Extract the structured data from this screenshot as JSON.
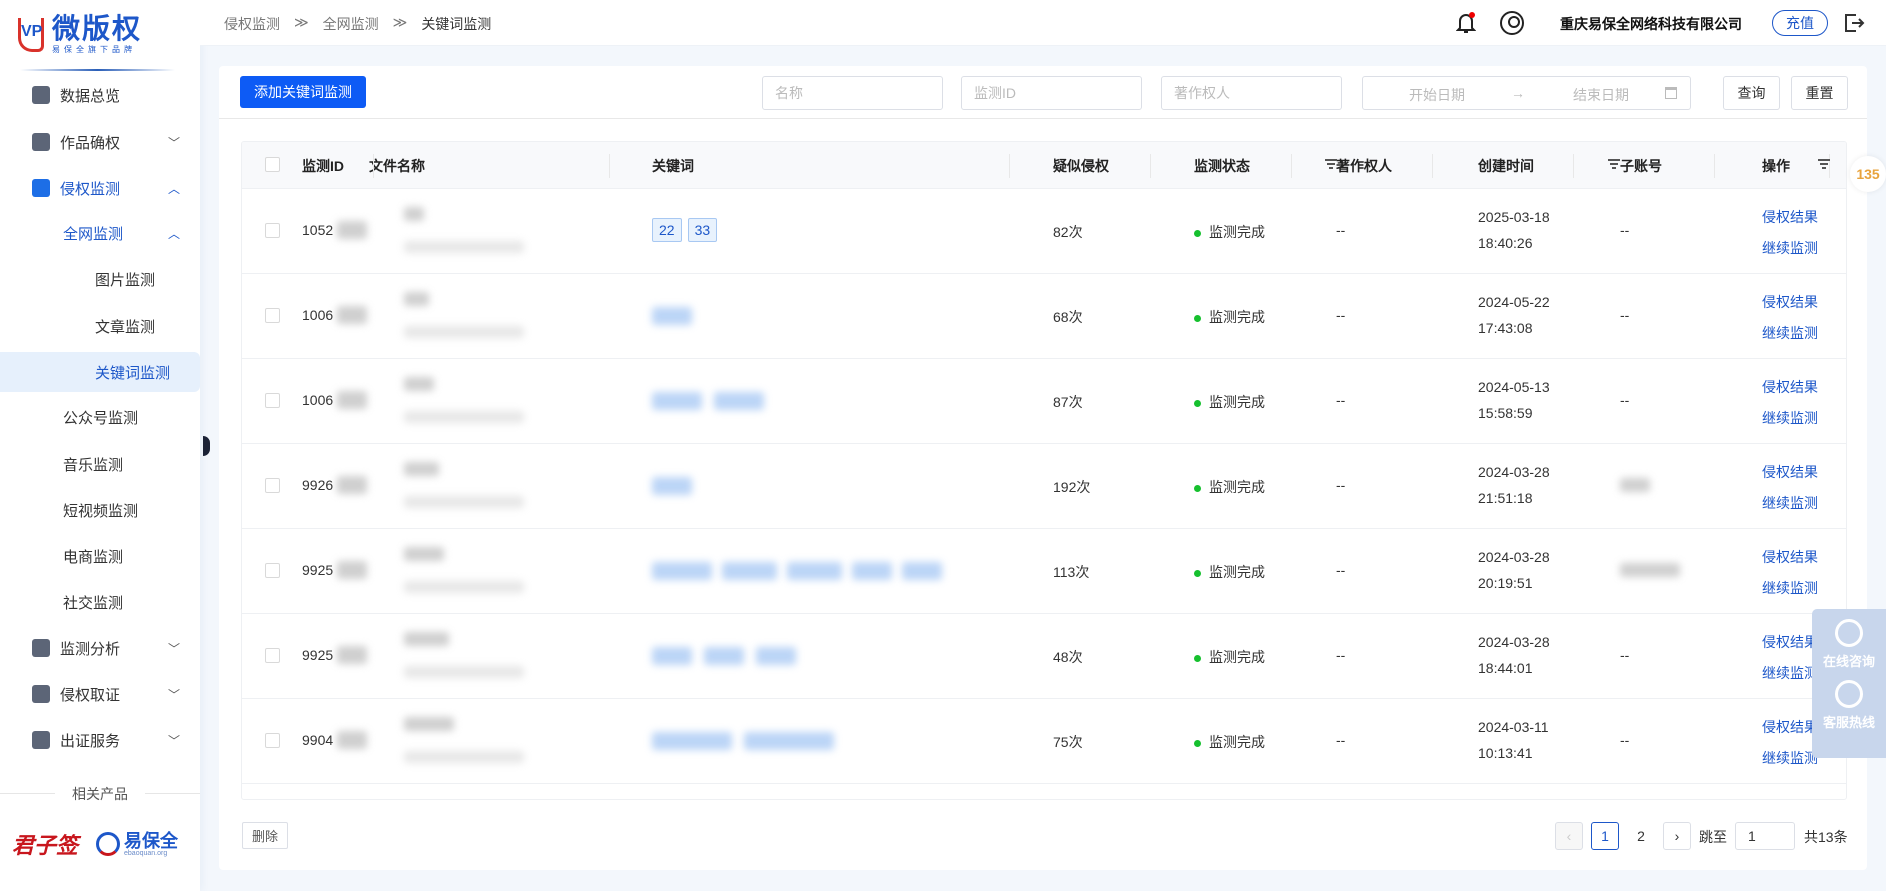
{
  "brand": {
    "title": "微版权",
    "subtitle": "易保全旗下品牌",
    "mark": "VP"
  },
  "sidebar": {
    "items": [
      {
        "label": "数据总览",
        "icon": "home-icon"
      },
      {
        "label": "作品确权",
        "icon": "shield-check-icon",
        "chevron": "down"
      },
      {
        "label": "侵权监测",
        "icon": "monitor-icon",
        "chevron": "up"
      },
      {
        "label": "全网监测",
        "chevron": "up"
      },
      {
        "label": "图片监测"
      },
      {
        "label": "文章监测"
      },
      {
        "label": "关键词监测",
        "active": true
      },
      {
        "label": "公众号监测"
      },
      {
        "label": "音乐监测"
      },
      {
        "label": "短视频监测"
      },
      {
        "label": "电商监测"
      },
      {
        "label": "社交监测"
      },
      {
        "label": "监测分析",
        "icon": "pie-chart-icon",
        "chevron": "down"
      },
      {
        "label": "侵权取证",
        "icon": "evidence-icon",
        "chevron": "down"
      },
      {
        "label": "出证服务",
        "icon": "certificate-icon",
        "chevron": "down"
      }
    ],
    "related_label": "相关产品",
    "partners": [
      {
        "name": "君子签"
      },
      {
        "name": "易保全",
        "sub": "ebaoquan.org"
      }
    ]
  },
  "header": {
    "breadcrumb": [
      "侵权监测",
      "全网监测",
      "关键词监测"
    ],
    "separator": "≫",
    "company": "重庆易保全网络科技有限公司",
    "recharge": "充值"
  },
  "toolbar": {
    "add_button": "添加关键词监测",
    "name_placeholder": "名称",
    "id_placeholder": "监测ID",
    "owner_placeholder": "著作权人",
    "start_placeholder": "开始日期",
    "end_placeholder": "结束日期",
    "arrow": "→",
    "query": "查询",
    "reset": "重置"
  },
  "table": {
    "columns": [
      "监测ID",
      "文件名称",
      "关键词",
      "疑似侵权",
      "监测状态",
      "著作权人",
      "创建时间",
      "子账号",
      "操作"
    ],
    "rows": [
      {
        "id": "1052",
        "keywords": [
          "22",
          "33"
        ],
        "count": "82次",
        "status": "监测完成",
        "owner": "--",
        "date": "2025-03-18",
        "time": "18:40:26",
        "sub": "--"
      },
      {
        "id": "1006",
        "keywords": [],
        "count": "68次",
        "status": "监测完成",
        "owner": "--",
        "date": "2024-05-22",
        "time": "17:43:08",
        "sub": "--"
      },
      {
        "id": "1006",
        "keywords": [],
        "count": "87次",
        "status": "监测完成",
        "owner": "--",
        "date": "2024-05-13",
        "time": "15:58:59",
        "sub": "--"
      },
      {
        "id": "9926",
        "keywords": [],
        "count": "192次",
        "status": "监测完成",
        "owner": "--",
        "date": "2024-03-28",
        "time": "21:51:18",
        "sub": ""
      },
      {
        "id": "9925",
        "keywords": [],
        "count": "113次",
        "status": "监测完成",
        "owner": "--",
        "date": "2024-03-28",
        "time": "20:19:51",
        "sub": ""
      },
      {
        "id": "9925",
        "keywords": [],
        "count": "48次",
        "status": "监测完成",
        "owner": "--",
        "date": "2024-03-28",
        "time": "18:44:01",
        "sub": "--"
      },
      {
        "id": "9904",
        "keywords": [],
        "count": "75次",
        "status": "监测完成",
        "owner": "--",
        "date": "2024-03-11",
        "time": "10:13:41",
        "sub": "--"
      }
    ],
    "action_result": "侵权结果",
    "action_continue": "继续监测"
  },
  "footer": {
    "delete": "删除",
    "pages": [
      "1",
      "2"
    ],
    "current_page": 1,
    "jump_label": "跳至",
    "jump_value": "1",
    "total": "共13条"
  },
  "float": {
    "consult": "在线咨询",
    "hotline": "客服热线"
  },
  "badge": "135",
  "colors": {
    "primary": "#0d5bf5",
    "link": "#1d57c9",
    "status_ok": "#16c02e",
    "brand_red": "#d9322b"
  }
}
